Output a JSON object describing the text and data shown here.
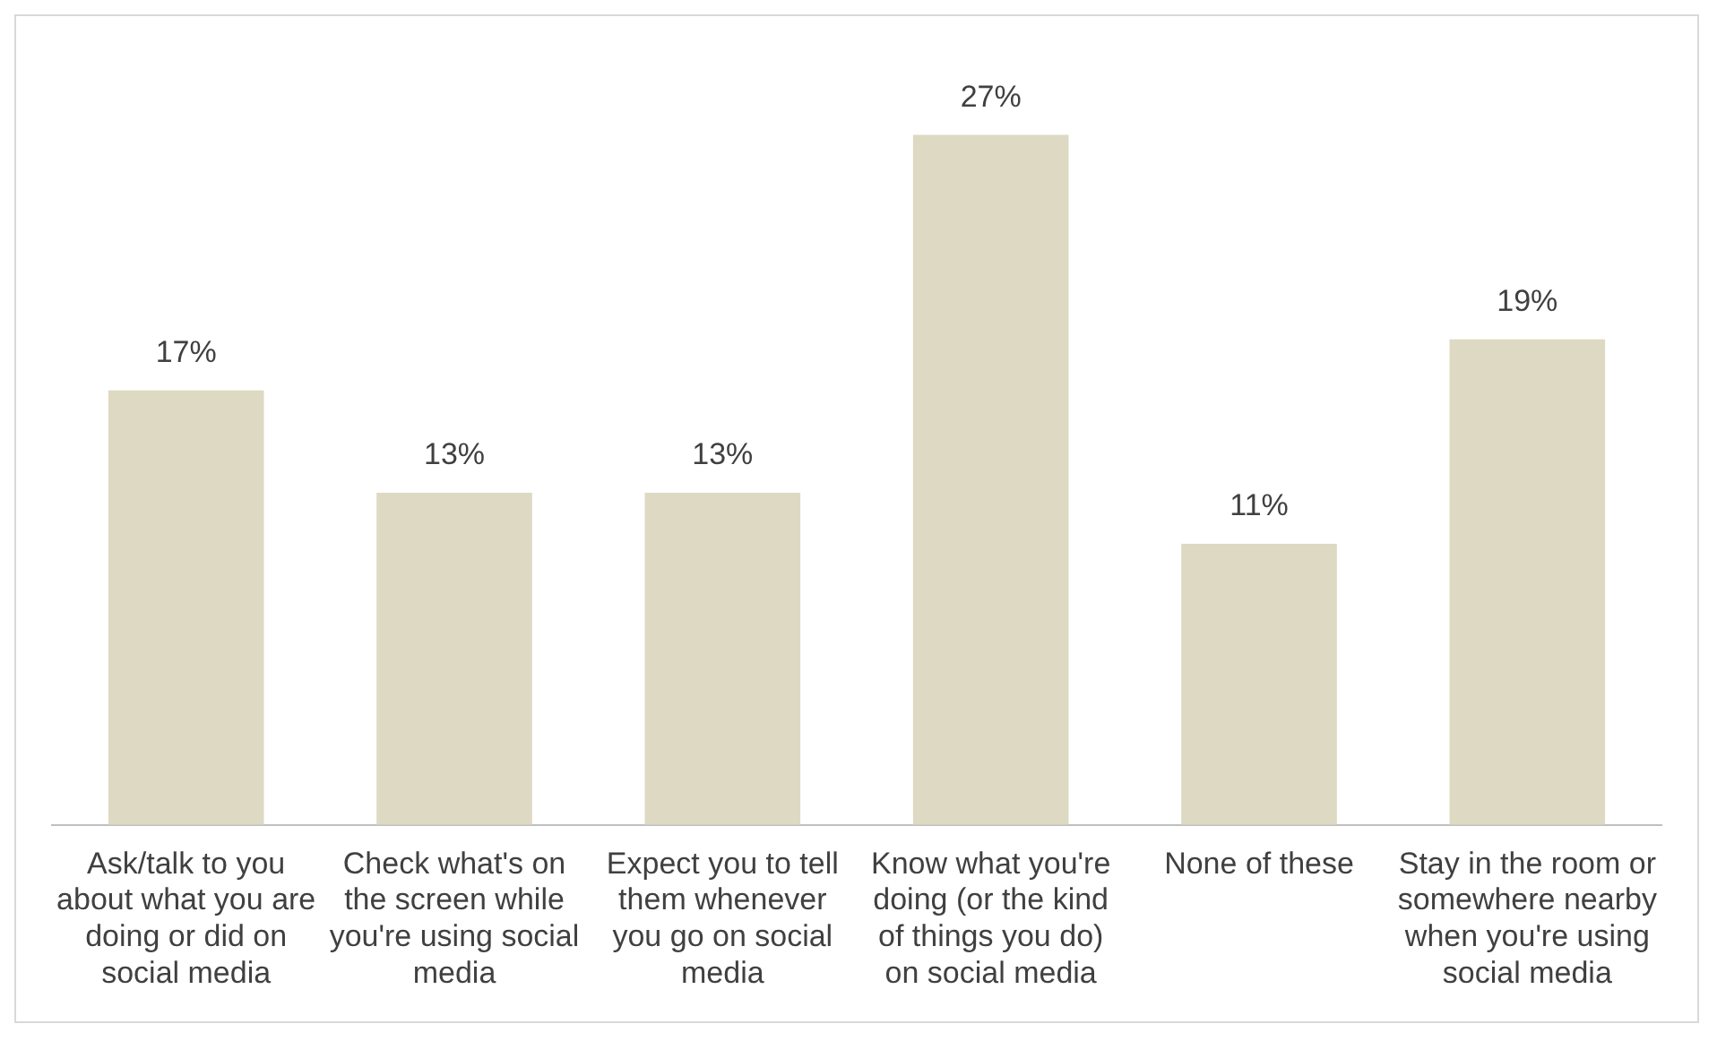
{
  "chart_data": {
    "type": "bar",
    "categories": [
      "Ask/talk to you about what you are doing or did on social media",
      "Check what's on the screen while you're using social media",
      "Expect you to tell them whenever you go on social media",
      "Know what you're doing (or the kind of things you do) on social media",
      "None of these",
      "Stay in the room or somewhere nearby when you're using social media"
    ],
    "values": [
      17,
      13,
      13,
      27,
      11,
      19
    ],
    "value_labels": [
      "17%",
      "13%",
      "13%",
      "27%",
      "11%",
      "19%"
    ],
    "color": "#ded9c3"
  }
}
